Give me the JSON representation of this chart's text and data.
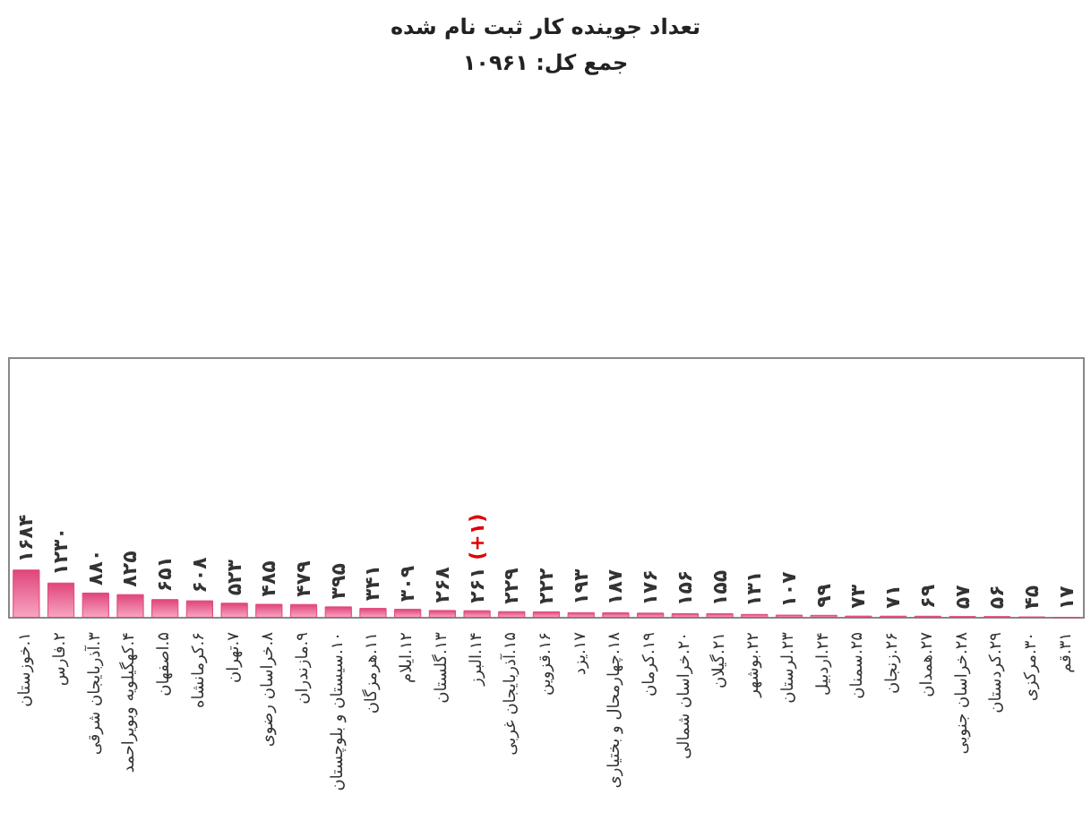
{
  "chart_data": {
    "type": "bar",
    "title": "تعداد جوینده کار ثبت نام شده",
    "subtitle": "جمع کل: ۱۰۹۶۱",
    "categories": [
      "۱.خوزستان",
      "۲.فارس",
      "۳.آذربایجان شرقی",
      "۴.کهگیلویه وبویراحمد",
      "۵.اصفهان",
      "۶.کرمانشاه",
      "۷.تهران",
      "۸.خراسان رضوی",
      "۹.مازندران",
      "۱۰.سیستان و بلوچستان",
      "۱۱.هرمزگان",
      "۱۲.ایلام",
      "۱۳.گلستان",
      "۱۴.البرز",
      "۱۵.آذربایجان غربی",
      "۱۶.قزوین",
      "۱۷.یزد",
      "۱۸.چهارمحال و بختیاری",
      "۱۹.کرمان",
      "۲۰.خراسان شمالی",
      "۲۱.گیلان",
      "۲۲.بوشهر",
      "۲۳.لرستان",
      "۲۴.اردبیل",
      "۲۵.سمنان",
      "۲۶.زنجان",
      "۲۷.همدان",
      "۲۸.خراسان جنوبی",
      "۲۹.کردستان",
      "۳۰.مرکزی",
      "۳۱.قم"
    ],
    "values": [
      1684,
      1230,
      880,
      825,
      651,
      608,
      523,
      485,
      479,
      395,
      341,
      309,
      268,
      261,
      229,
      222,
      193,
      187,
      176,
      156,
      155,
      131,
      107,
      99,
      73,
      71,
      69,
      57,
      56,
      45,
      17
    ],
    "value_labels": [
      "۱۶۸۴",
      "۱۲۳۰",
      "۸۸۰",
      "۸۲۵",
      "۶۵۱",
      "۶۰۸",
      "۵۲۳",
      "۴۸۵",
      "۴۷۹",
      "۳۹۵",
      "۳۴۱",
      "۳۰۹",
      "۲۶۸",
      "۲۶۱ (+۱)",
      "۲۲۹",
      "۲۲۲",
      "۱۹۳",
      "۱۸۷",
      "۱۷۶",
      "۱۵۶",
      "۱۵۵",
      "۱۳۱",
      "۱۰۷",
      "۹۹",
      "۷۳",
      "۷۱",
      "۶۹",
      "۵۷",
      "۵۶",
      "۴۵",
      "۱۷"
    ],
    "color": "#e0457b"
  }
}
